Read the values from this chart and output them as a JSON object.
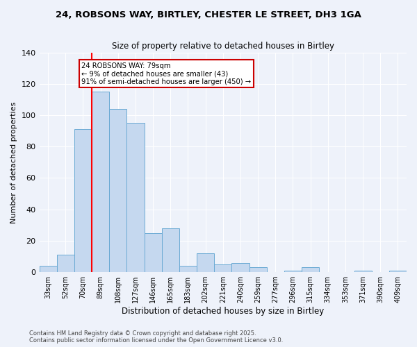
{
  "title_line1": "24, ROBSONS WAY, BIRTLEY, CHESTER LE STREET, DH3 1GA",
  "title_line2": "Size of property relative to detached houses in Birtley",
  "xlabel": "Distribution of detached houses by size in Birtley",
  "ylabel": "Number of detached properties",
  "categories": [
    "33sqm",
    "52sqm",
    "70sqm",
    "89sqm",
    "108sqm",
    "127sqm",
    "146sqm",
    "165sqm",
    "183sqm",
    "202sqm",
    "221sqm",
    "240sqm",
    "259sqm",
    "277sqm",
    "296sqm",
    "315sqm",
    "334sqm",
    "353sqm",
    "371sqm",
    "390sqm",
    "409sqm"
  ],
  "values": [
    4,
    11,
    91,
    115,
    104,
    95,
    25,
    28,
    4,
    12,
    5,
    6,
    3,
    0,
    1,
    3,
    0,
    0,
    1,
    0,
    1
  ],
  "bar_color": "#c5d8ef",
  "bar_edge_color": "#6aaad4",
  "red_line_index": 2,
  "annotation_text": "24 ROBSONS WAY: 79sqm\n← 9% of detached houses are smaller (43)\n91% of semi-detached houses are larger (450) →",
  "annotation_box_color": "#ffffff",
  "annotation_box_edge_color": "#cc0000",
  "footer_line1": "Contains HM Land Registry data © Crown copyright and database right 2025.",
  "footer_line2": "Contains public sector information licensed under the Open Government Licence v3.0.",
  "ylim": [
    0,
    140
  ],
  "background_color": "#eef2fa"
}
